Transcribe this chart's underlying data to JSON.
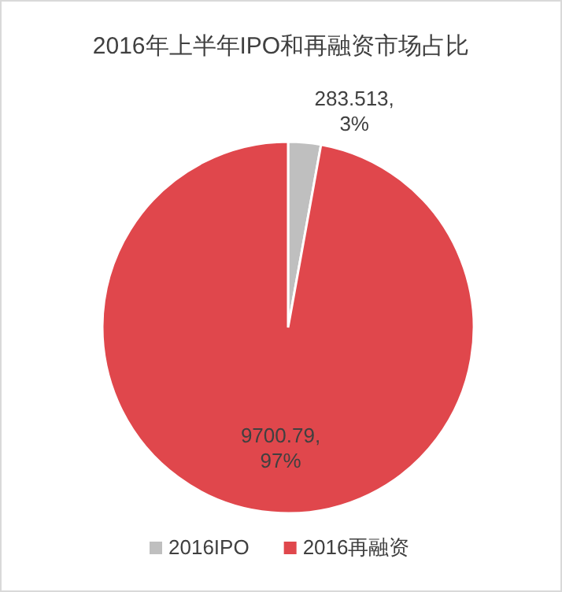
{
  "chart_data": {
    "type": "pie",
    "title": "2016年上半年IPO和再融资市场占比",
    "categories": [
      "2016IPO",
      "2016再融资"
    ],
    "values": [
      283.513,
      9700.79
    ],
    "colors": [
      "#bfbfbf",
      "#e0474c"
    ],
    "value_labels": [
      "283.513,\n3%",
      "9700.79,\n97%"
    ],
    "legend": "bottom"
  }
}
